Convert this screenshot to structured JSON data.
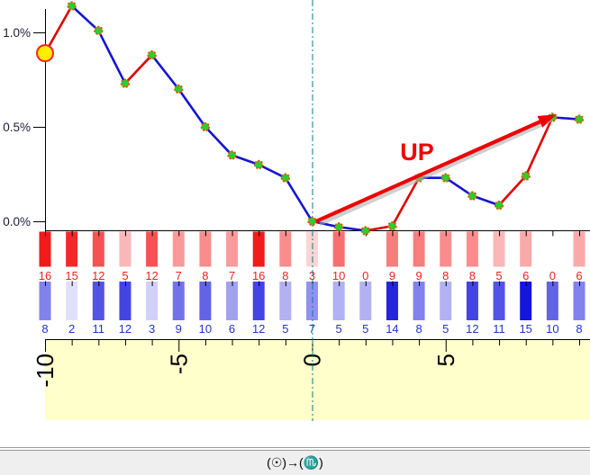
{
  "status_bar": {
    "text": "(☉)→(♏)"
  },
  "chart_data": {
    "type": "line",
    "title": "",
    "xlabel": "",
    "ylabel": "",
    "grid": false,
    "x": [
      -10,
      -9,
      -8,
      -7,
      -6,
      -5,
      -4,
      -3,
      -2,
      -1,
      0,
      1,
      2,
      3,
      4,
      5,
      6,
      7,
      8,
      9,
      10
    ],
    "series": [
      {
        "name": "percent-change-line",
        "unit": "%",
        "values": [
          0.89,
          1.14,
          1.01,
          0.73,
          0.88,
          0.7,
          0.5,
          0.35,
          0.3,
          0.23,
          0.0,
          -0.03,
          -0.05,
          -0.025,
          0.23,
          0.23,
          0.135,
          0.085,
          0.24,
          0.55,
          0.54
        ]
      }
    ],
    "segment_color_rule": "red-if-rising-else-blue",
    "highlight_point_index": 0,
    "bar_rows": [
      {
        "name": "upper-count-row",
        "palette": "red",
        "values": [
          16,
          15,
          12,
          5,
          12,
          7,
          8,
          7,
          16,
          8,
          3,
          10,
          0,
          9,
          9,
          8,
          8,
          5,
          6,
          0,
          6
        ]
      },
      {
        "name": "lower-count-row",
        "palette": "blue",
        "values": [
          8,
          2,
          11,
          12,
          3,
          9,
          10,
          6,
          12,
          5,
          7,
          5,
          5,
          14,
          8,
          5,
          12,
          11,
          15,
          10,
          8
        ]
      }
    ],
    "y_ticks": [
      {
        "label": "1.0%",
        "value": 1.0
      },
      {
        "label": "0.5%",
        "value": 0.5
      },
      {
        "label": "0.0%",
        "value": 0.0
      }
    ],
    "x_tick_labels": [
      {
        "label": "-10",
        "value": -10
      },
      {
        "label": "-5",
        "value": -5
      },
      {
        "label": "0",
        "value": 0
      },
      {
        "label": "5",
        "value": 5
      }
    ],
    "ylim": [
      -0.05,
      1.17
    ],
    "vline_x": 0,
    "annotation": {
      "label": "UP",
      "from": [
        0.15,
        0.0
      ],
      "to": [
        8.9,
        0.55
      ]
    },
    "colors": {
      "line_up": "#e00000",
      "line_down": "#1414d2",
      "marker_fill": "#2ecc2e",
      "marker_stroke": "#e05800",
      "start_marker_fill": "#ffee00",
      "start_marker_stroke": "#ff2020",
      "arrow": "#ee0000",
      "arrow_shadow": "#aaaaaa",
      "vline": "#008080",
      "x_band": "#ffffcc",
      "axis": "#000000",
      "red_value_text": "#ee2222",
      "blue_value_text": "#2233cc",
      "y_label_text": "#1c1c3a",
      "status_bg": "#efefef"
    }
  }
}
